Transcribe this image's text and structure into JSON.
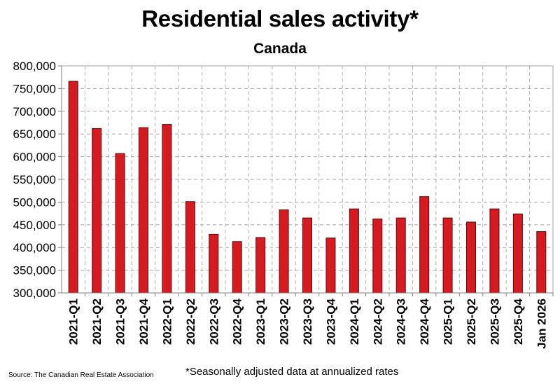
{
  "chart_data": {
    "type": "bar",
    "title": "Residential sales activity*",
    "subtitle": "Canada",
    "categories": [
      "2021-Q1",
      "2021-Q2",
      "2021-Q3",
      "2021-Q4",
      "2022-Q1",
      "2022-Q2",
      "2022-Q3",
      "2022-Q4",
      "2023-Q1",
      "2023-Q2",
      "2023-Q3",
      "2023-Q4",
      "2024-Q1",
      "2024-Q2",
      "2024-Q3",
      "2024-Q4",
      "2025-Q1",
      "2025-Q2",
      "2025-Q3",
      "2025-Q4",
      "Jan 2026"
    ],
    "values": [
      766000,
      662000,
      607000,
      664000,
      671000,
      501000,
      429000,
      413000,
      422000,
      483000,
      465000,
      421000,
      485000,
      463000,
      465000,
      512000,
      465000,
      456000,
      485000,
      474000,
      435000
    ],
    "ylim": [
      300000,
      800000
    ],
    "yticks": [
      "300,000",
      "350,000",
      "400,000",
      "450,000",
      "500,000",
      "550,000",
      "600,000",
      "650,000",
      "700,000",
      "750,000",
      "800,000"
    ],
    "grid": true,
    "bar_color": "#d71920",
    "legend": "none"
  },
  "source": "Source: The Canadian Real Estate Association",
  "footnote": "*Seasonally adjusted data at annualized rates"
}
